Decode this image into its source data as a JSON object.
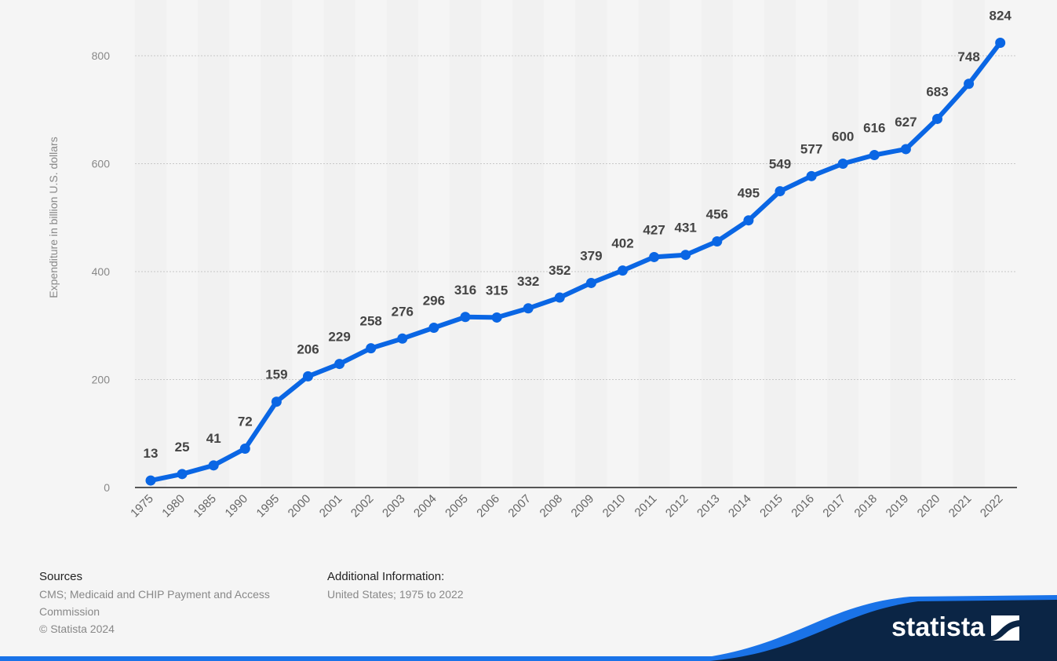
{
  "chart_data": {
    "type": "line",
    "categories": [
      "1975",
      "1980",
      "1985",
      "1990",
      "1995",
      "2000",
      "2001",
      "2002",
      "2003",
      "2004",
      "2005",
      "2006",
      "2007",
      "2008",
      "2009",
      "2010",
      "2011",
      "2012",
      "2013",
      "2014",
      "2015",
      "2016",
      "2017",
      "2018",
      "2019",
      "2020",
      "2021",
      "2022"
    ],
    "series": [
      {
        "values": [
          13,
          25,
          41,
          72,
          159,
          206,
          229,
          258,
          276,
          296,
          316,
          315,
          332,
          352,
          379,
          402,
          427,
          431,
          456,
          495,
          549,
          577,
          600,
          616,
          627,
          683,
          748,
          824
        ]
      }
    ],
    "ylabel": "Expenditure in billion U.S. dollars",
    "ylim": [
      0,
      800
    ],
    "yticks": [
      0,
      200,
      400,
      600,
      800
    ],
    "grid": true,
    "data_labels": true,
    "line_color": "#0a66e4",
    "bg_color": "#f5f5f5",
    "stripe_color": "#ebebeb"
  },
  "footer": {
    "sources_heading": "Sources",
    "sources_line1": "CMS; Medicaid and CHIP Payment and Access",
    "sources_line2": "Commission",
    "copyright": "© Statista 2024",
    "additional_heading": "Additional Information:",
    "additional_text": "United States; 1975 to 2022"
  },
  "brand": {
    "name": "statista",
    "logo_icon": "statista-logo-icon",
    "color": "#0b2545",
    "accent": "#1a73e8"
  }
}
